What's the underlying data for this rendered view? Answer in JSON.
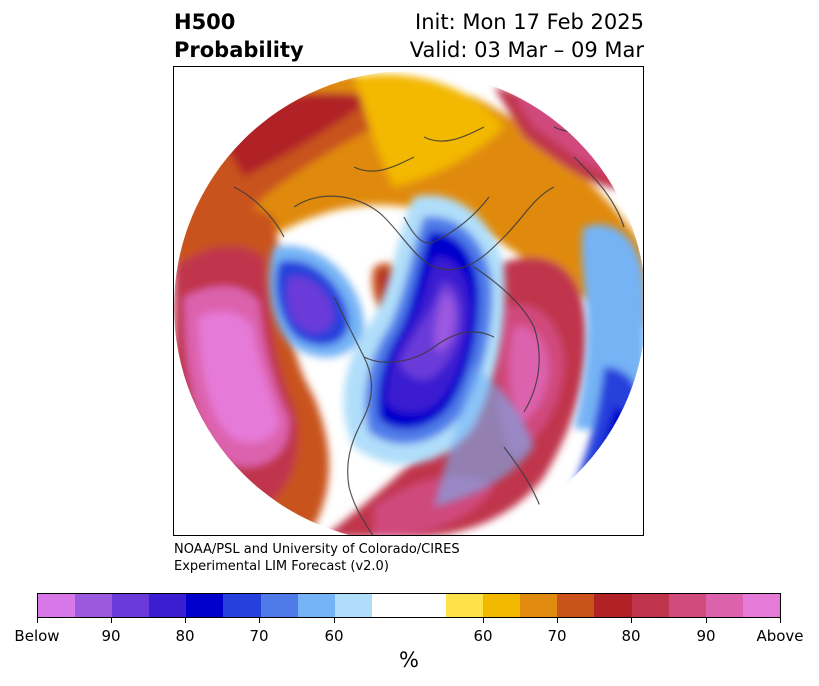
{
  "header": {
    "title_line1": "H500",
    "title_line2": "Probability",
    "init": "Init: Mon 17 Feb 2025",
    "valid": "Valid: 03 Mar – 09 Mar"
  },
  "credit": {
    "line1": "NOAA/PSL and University of Colorado/CIRES",
    "line2": "Experimental LIM Forecast (v2.0)"
  },
  "colorbar": {
    "unit": "%",
    "colors": [
      "#d878e8",
      "#9b59e0",
      "#6a3bd9",
      "#3a1ed0",
      "#0000cd",
      "#2540dc",
      "#4f7be8",
      "#74b3f5",
      "#b0defa",
      "#ffffff",
      "#ffe14a",
      "#f3b800",
      "#e08a10",
      "#c9531a",
      "#b02226",
      "#c0344b",
      "#d04a7c",
      "#dc62ad",
      "#e67ad8"
    ],
    "tick_labels": [
      "Below",
      "90",
      "80",
      "70",
      "60",
      "60",
      "70",
      "80",
      "90",
      "Above"
    ]
  },
  "legend_colors": {
    "below_high": "#d878e8",
    "below_mid": "#6a3bd9",
    "below_low": "#0000cd",
    "neutral": "#ffffff",
    "above_low": "#f3b800",
    "above_mid": "#b02226",
    "above_high": "#e67ad8"
  }
}
